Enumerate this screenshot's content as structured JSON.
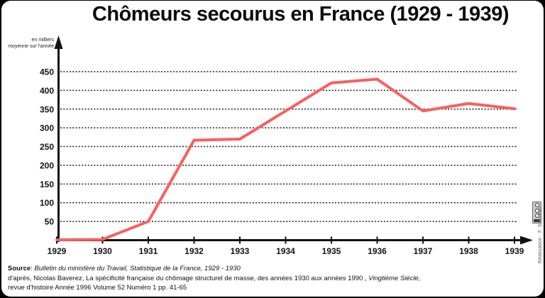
{
  "title": "Chômeurs secourus en France (1929 - 1939)",
  "y_axis_unit": {
    "line1": "en milliers",
    "line2": "moyenne sur l'année"
  },
  "chart_data": {
    "type": "line",
    "title": "Chômeurs secourus en France (1929 - 1939)",
    "x": [
      1929,
      1930,
      1931,
      1932,
      1933,
      1934,
      1935,
      1936,
      1937,
      1938,
      1939
    ],
    "series": [
      {
        "name": "Chômeurs secourus (en milliers, moyenne sur l'année)",
        "values": [
          1,
          2,
          50,
          267,
          270,
          345,
          420,
          430,
          345,
          365,
          351
        ],
        "color": "#f86060"
      }
    ],
    "xlabel": "",
    "ylabel": "en milliers, moyenne sur l'année",
    "ylim": [
      0,
      475
    ],
    "yticks": [
      50,
      100,
      150,
      200,
      250,
      300,
      350,
      400,
      450
    ],
    "grid": "horizontal-dashed",
    "legend_position": "none",
    "axis_color": "#111111"
  },
  "source": {
    "bold": "Source",
    "sep": ": ",
    "italic_ref": "Bulletin du ministère du Travail, Statistique de la France, 1929 - 1930",
    "line2_text": "d'après, Nicolas Baverez, La spécificité française du chômage structurel de masse, des années 1930 aux années 1990 , ",
    "line2_italic": "Vingtième Siècle,",
    "line3": "revue d'histoire  Année 1996  Volume 52  Numéro 1  pp. 41-65"
  },
  "credit": "Réalisation : F. Sauzeau"
}
